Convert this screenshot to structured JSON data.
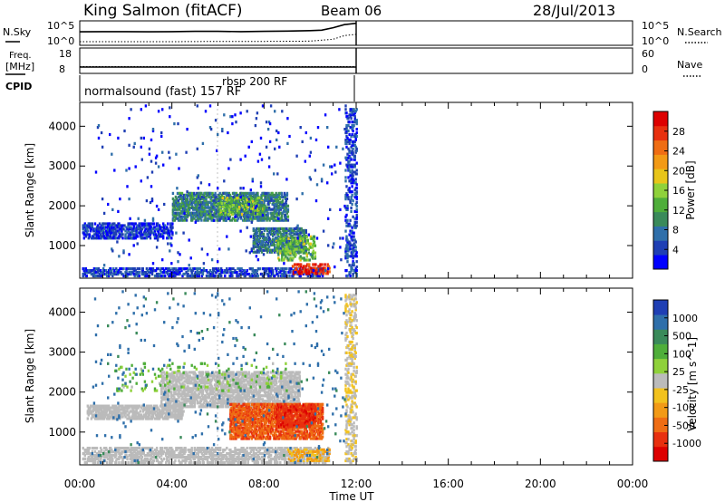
{
  "header": {
    "station": "King Salmon (fitACF)",
    "beam": "Beam 06",
    "date": "28/Jul/2013"
  },
  "strip_labels": {
    "nsky": "N.Sky",
    "nsearch": "N.Search",
    "freq_line1": "Freq.",
    "freq_line2": "[MHz]",
    "nave": "Nave",
    "cpid": "CPID",
    "nsky_ticks": [
      "10^5",
      "10^0"
    ],
    "nsearch_ticks": [
      "10^5",
      "10^0"
    ],
    "freq_ticks": [
      "18",
      "8"
    ],
    "nave_ticks": [
      "60",
      "0"
    ]
  },
  "cpid_annotations": [
    "normalsound (fast) 157 RF",
    "rbsp 200 RF"
  ],
  "colors": {
    "power": [
      "#0000ff",
      "#1f3fb4",
      "#2f6faa",
      "#3a8a5a",
      "#4fae3a",
      "#8fd13a",
      "#e8c51a",
      "#f29a16",
      "#ef6d14",
      "#e8300f",
      "#dd0000"
    ],
    "velocity_pos": [
      "#1f3fb4",
      "#2f6faa",
      "#3a8a5a",
      "#4fae3a",
      "#8fd13a"
    ],
    "velocity_ground": "#bbbbbb",
    "velocity_neg": [
      "#f2c21e",
      "#f29a16",
      "#ef6d14",
      "#e8300f",
      "#dd0000"
    ]
  },
  "colorbars": {
    "power": {
      "label": "Power [dB]",
      "ticks": [
        "28",
        "24",
        "20",
        "16",
        "12",
        "8",
        "4"
      ]
    },
    "velocity": {
      "label": "Velocity [m s^-1]",
      "ticks": [
        "1000",
        "500",
        "100",
        "25",
        "-25",
        "-100",
        "-500",
        "-1000"
      ]
    }
  },
  "chart_data": [
    {
      "type": "line",
      "title": "N.Sky / N.Search",
      "x_range_hours": [
        0,
        24
      ],
      "data_end_hour": 12.0,
      "series": [
        {
          "name": "N.Sky",
          "style": "solid",
          "x": [
            0,
            1,
            2,
            3,
            4,
            5,
            6,
            7,
            8,
            9,
            10,
            10.5,
            11,
            11.5,
            12
          ],
          "y_fraction": [
            0.55,
            0.56,
            0.56,
            0.55,
            0.56,
            0.57,
            0.57,
            0.56,
            0.57,
            0.58,
            0.6,
            0.62,
            0.72,
            0.85,
            0.9
          ]
        },
        {
          "name": "N.Search",
          "style": "dotted",
          "x": [
            0,
            2,
            4,
            6,
            8,
            10,
            11,
            11.5,
            12
          ],
          "y_fraction": [
            0.15,
            0.15,
            0.15,
            0.16,
            0.16,
            0.17,
            0.25,
            0.4,
            0.45
          ]
        }
      ]
    },
    {
      "type": "line",
      "title": "Freq / Nave",
      "x_range_hours": [
        0,
        24
      ],
      "data_end_hour": 12.0,
      "series": [
        {
          "name": "Freq [MHz]",
          "style": "solid",
          "x": [
            0,
            12
          ],
          "y": [
            10.5,
            10.5
          ],
          "ylim": [
            8,
            18
          ]
        },
        {
          "name": "Nave",
          "style": "dotted",
          "x": [
            0,
            12
          ],
          "y": [
            16,
            16
          ],
          "ylim": [
            0,
            60
          ]
        }
      ]
    },
    {
      "type": "heatmap",
      "title": "Power [dB]",
      "xlabel": "",
      "ylabel": "Slant Range [km]",
      "x_range_hours": [
        0,
        24
      ],
      "ylim_km": [
        180,
        4600
      ],
      "yticks": [
        1000,
        2000,
        3000,
        4000
      ],
      "data_end_hour": 12.0,
      "scatter_regions": [
        {
          "x": [
            0.1,
            4.0
          ],
          "y": [
            1150,
            1550
          ],
          "value": 4,
          "density": 0.45
        },
        {
          "x": [
            4.0,
            9.0
          ],
          "y": [
            1600,
            2300
          ],
          "value": 9,
          "density": 0.55
        },
        {
          "x": [
            6.0,
            8.0
          ],
          "y": [
            1750,
            2200
          ],
          "value": 14,
          "density": 0.35
        },
        {
          "x": [
            7.5,
            9.8
          ],
          "y": [
            800,
            1400
          ],
          "value": 8,
          "density": 0.55
        },
        {
          "x": [
            8.5,
            10.2
          ],
          "y": [
            600,
            1200
          ],
          "value": 14,
          "density": 0.3
        },
        {
          "x": [
            0.1,
            10.5
          ],
          "y": [
            200,
            420
          ],
          "value": 5,
          "density": 0.4
        },
        {
          "x": [
            9.2,
            10.8
          ],
          "y": [
            260,
            520
          ],
          "value": 28,
          "density": 0.4
        },
        {
          "x": [
            11.5,
            12.0
          ],
          "y": [
            200,
            4400
          ],
          "value": 5,
          "density": 0.25
        },
        {
          "x": [
            0.5,
            11.5
          ],
          "y": [
            200,
            4500
          ],
          "value": 4,
          "density": 0.012
        }
      ]
    },
    {
      "type": "heatmap",
      "title": "Velocity [m s^-1]",
      "xlabel": "Time UT",
      "ylabel": "Slant Range [km]",
      "x_range_hours": [
        0,
        24
      ],
      "x_tick_labels": [
        "00:00",
        "04:00",
        "08:00",
        "12:00",
        "16:00",
        "20:00",
        "00:00"
      ],
      "ylim_km": [
        180,
        4600
      ],
      "yticks": [
        1000,
        2000,
        3000,
        4000
      ],
      "data_end_hour": 12.0,
      "scatter_regions": [
        {
          "x": [
            0.3,
            4.5
          ],
          "y": [
            1300,
            1650
          ],
          "value": 0,
          "density": 0.55
        },
        {
          "x": [
            3.5,
            9.5
          ],
          "y": [
            1600,
            2500
          ],
          "value": 0,
          "density": 0.5
        },
        {
          "x": [
            6.5,
            10.5
          ],
          "y": [
            800,
            1700
          ],
          "value": -200,
          "density": 0.6
        },
        {
          "x": [
            8.5,
            10.2
          ],
          "y": [
            1100,
            1650
          ],
          "value": -400,
          "density": 0.4
        },
        {
          "x": [
            0.1,
            10.8
          ],
          "y": [
            200,
            600
          ],
          "value": 0,
          "density": 0.45
        },
        {
          "x": [
            9.0,
            10.8
          ],
          "y": [
            250,
            550
          ],
          "value": -50,
          "density": 0.4
        },
        {
          "x": [
            1.5,
            9.0
          ],
          "y": [
            2000,
            2700
          ],
          "value": 50,
          "density": 0.05
        },
        {
          "x": [
            11.5,
            12.0
          ],
          "y": [
            200,
            4400
          ],
          "value": -20,
          "density": 0.25
        },
        {
          "x": [
            0.5,
            11.5
          ],
          "y": [
            200,
            4500
          ],
          "value": 300,
          "density": 0.012
        }
      ]
    }
  ]
}
